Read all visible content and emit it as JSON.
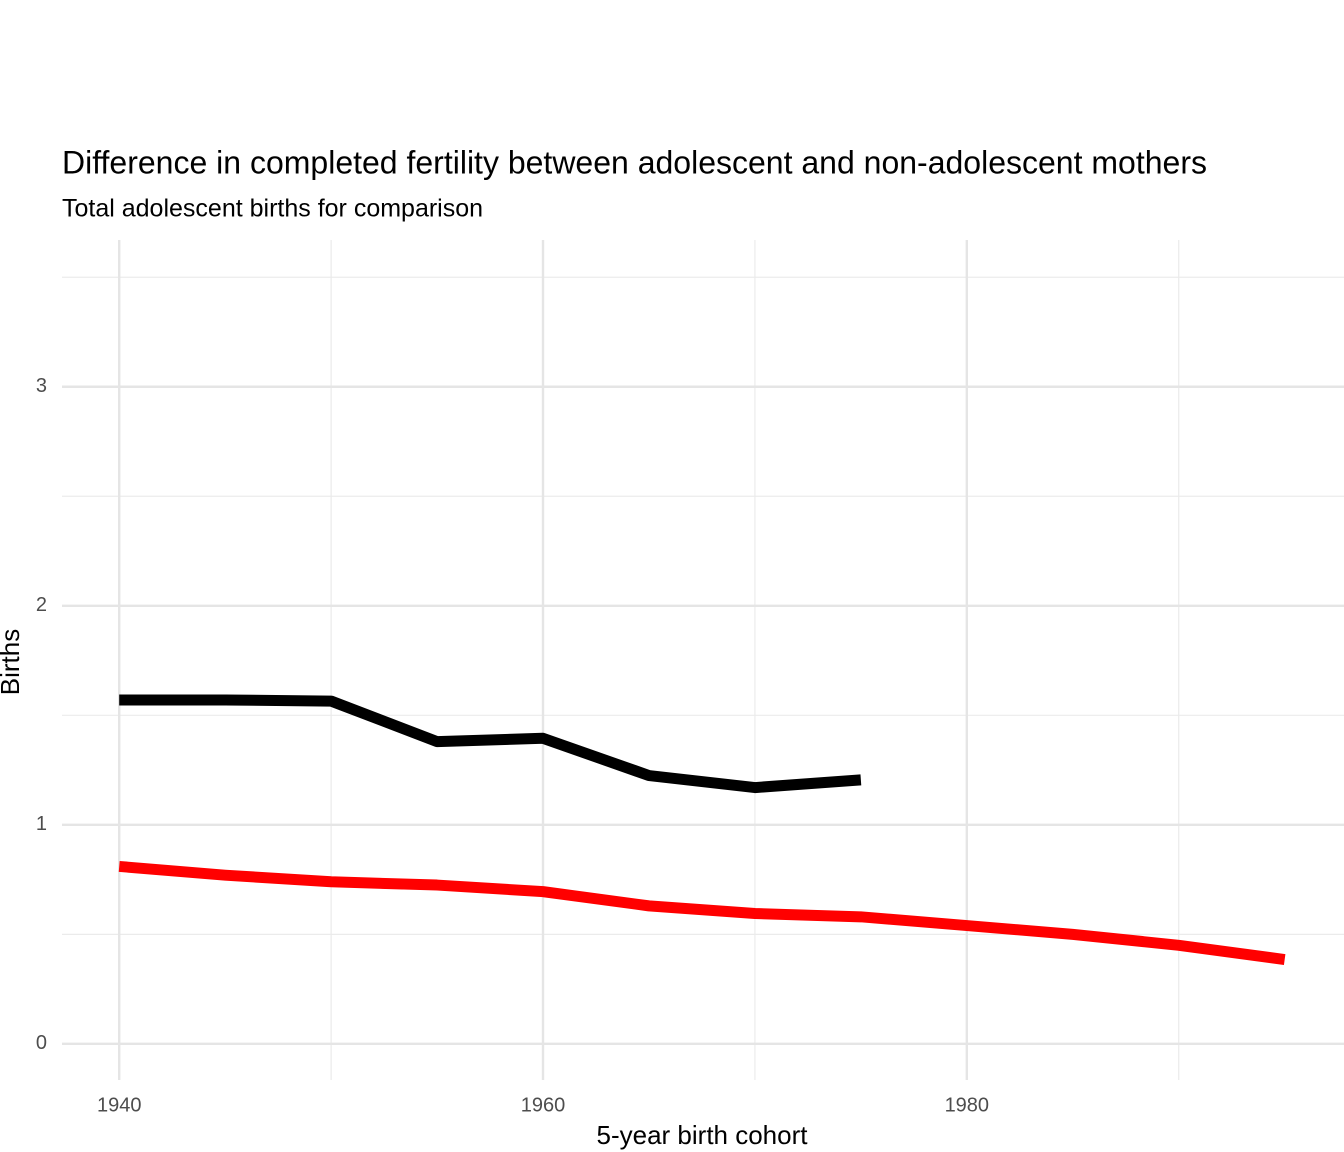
{
  "chart_data": {
    "type": "line",
    "title": "Difference in completed fertility between adolescent and non-adolescent mothers",
    "subtitle": "Total adolescent births for comparison",
    "x_label": "5-year birth cohort",
    "y_label": "Births",
    "x": [
      1940,
      1945,
      1950,
      1955,
      1960,
      1965,
      1970,
      1975,
      1980,
      1985,
      1990,
      1995
    ],
    "series": [
      {
        "color": "#000000",
        "values": [
          1.57,
          1.57,
          1.565,
          1.38,
          1.395,
          1.225,
          1.17,
          1.205,
          null,
          null,
          null,
          null
        ]
      },
      {
        "color": "#ff0000",
        "values": [
          0.81,
          0.77,
          0.74,
          0.725,
          0.695,
          0.63,
          0.595,
          0.58,
          0.54,
          0.5,
          0.45,
          0.385
        ]
      }
    ],
    "xlim": [
      1937.3,
      1997.8
    ],
    "ylim": [
      -0.165,
      3.67
    ],
    "xticks": [
      1940,
      1960,
      1980
    ],
    "yticks": [
      0,
      1,
      2,
      3
    ],
    "xminor": [
      1950,
      1970,
      1990
    ],
    "yminor": [
      0.5,
      1.5,
      2.5,
      3.5
    ],
    "grid": true
  }
}
